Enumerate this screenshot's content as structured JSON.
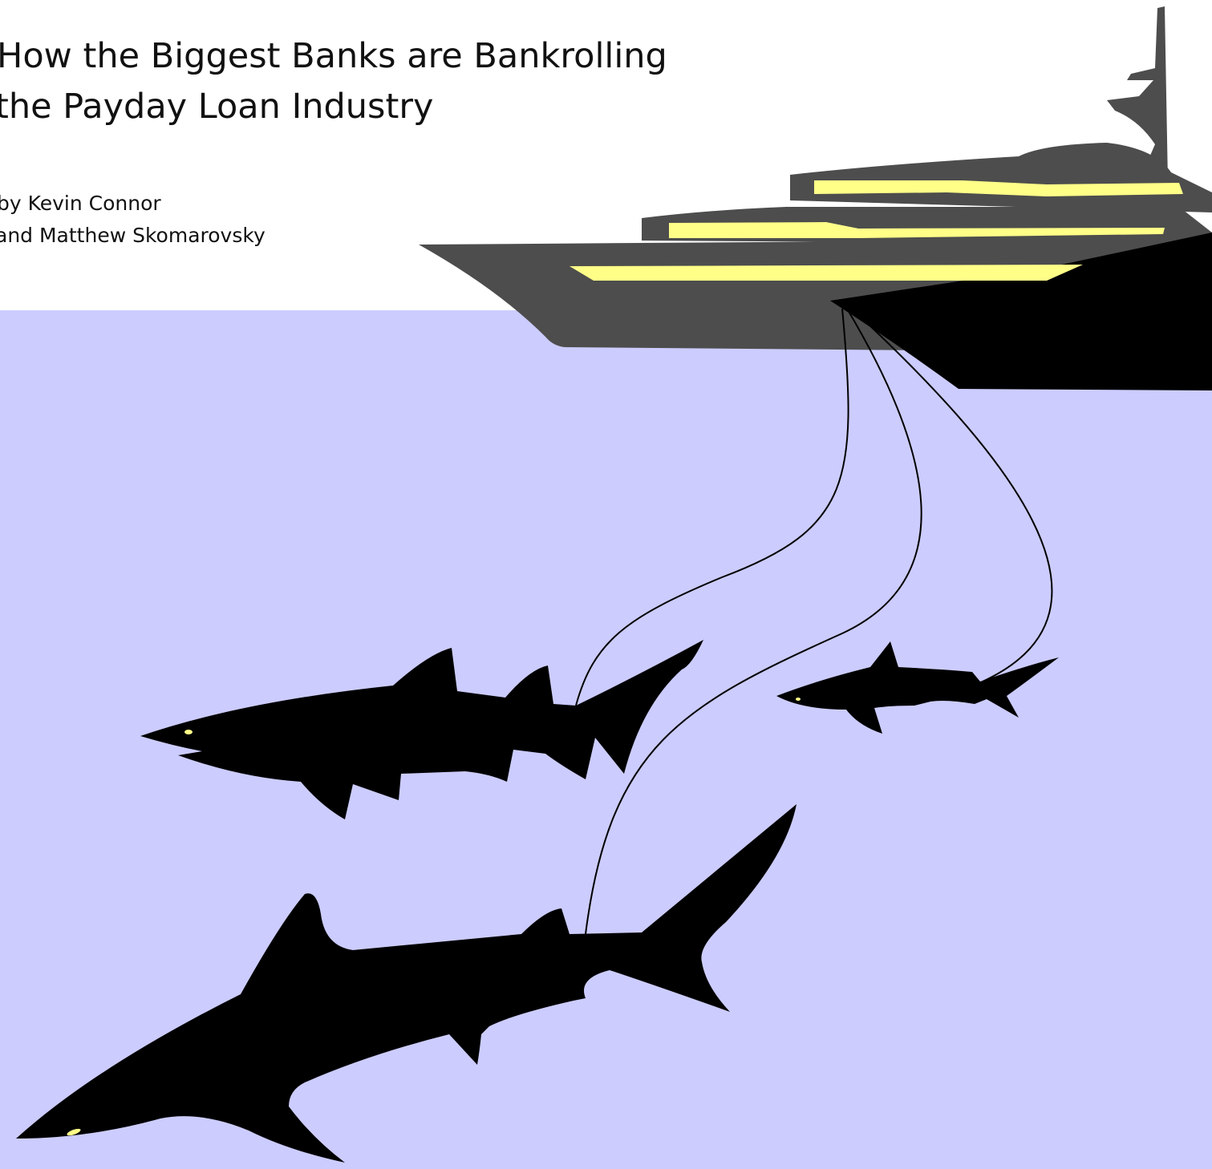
{
  "title": {
    "lines": [
      "How the Biggest Banks are Bankrolling",
      "the Payday Loan Industry"
    ]
  },
  "byline": {
    "lines": [
      "by Kevin Connor",
      "and Matthew Skomarovsky"
    ]
  }
}
